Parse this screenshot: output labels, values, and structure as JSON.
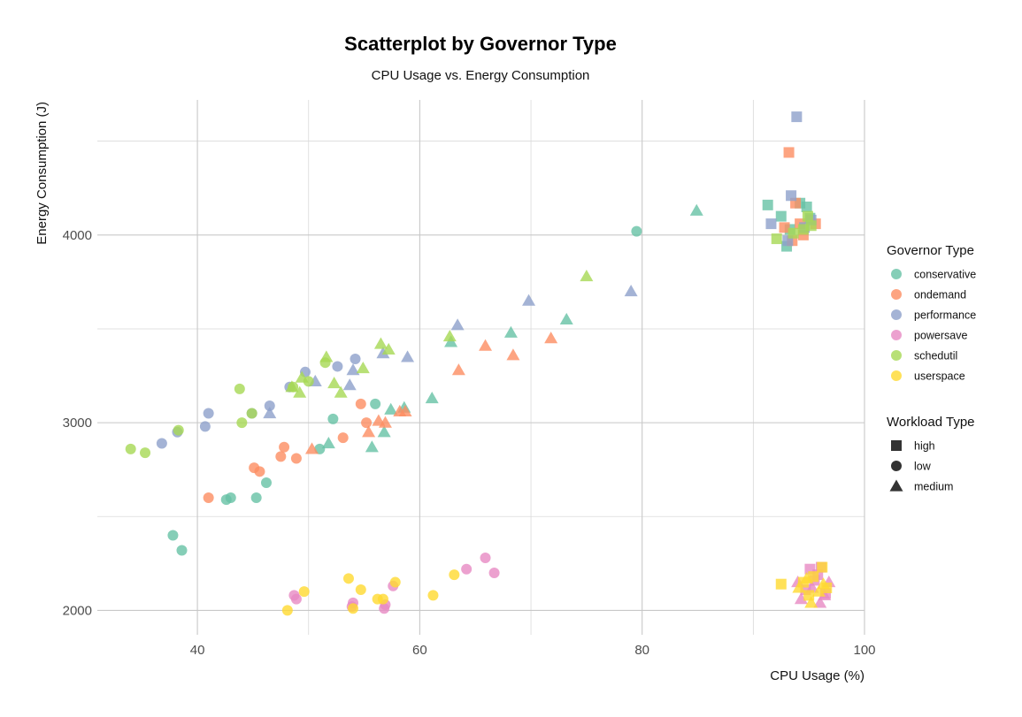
{
  "chart_data": {
    "type": "scatter",
    "title": "Scatterplot by Governor Type",
    "subtitle": "CPU Usage vs. Energy Consumption",
    "xlabel": "CPU Usage (%)",
    "ylabel": "Energy Consumption (J)",
    "xlim": [
      31,
      100
    ],
    "ylim": [
      1870,
      4720
    ],
    "x_ticks": [
      40,
      60,
      80,
      100
    ],
    "y_ticks": [
      2000,
      3000,
      4000
    ],
    "grid": true,
    "legend_placement": "right",
    "legends": [
      {
        "title": "Governor Type",
        "entries": [
          {
            "label": "conservative",
            "color": "#66c2a5"
          },
          {
            "label": "ondemand",
            "color": "#fc8d62"
          },
          {
            "label": "performance",
            "color": "#8da0cb"
          },
          {
            "label": "powersave",
            "color": "#e78ac3"
          },
          {
            "label": "schedutil",
            "color": "#a6d854"
          },
          {
            "label": "userspace",
            "color": "#ffd92f"
          }
        ]
      },
      {
        "title": "Workload Type",
        "entries": [
          {
            "label": "high",
            "shape": "square"
          },
          {
            "label": "low",
            "shape": "circle"
          },
          {
            "label": "medium",
            "shape": "triangle"
          }
        ]
      }
    ],
    "series": [
      {
        "governor": "conservative",
        "color": "#66c2a5",
        "points": [
          {
            "x": 37.8,
            "y": 2400,
            "w": "low"
          },
          {
            "x": 38.6,
            "y": 2320,
            "w": "low"
          },
          {
            "x": 42.6,
            "y": 2590,
            "w": "low"
          },
          {
            "x": 43.0,
            "y": 2600,
            "w": "low"
          },
          {
            "x": 45.3,
            "y": 2600,
            "w": "low"
          },
          {
            "x": 46.2,
            "y": 2680,
            "w": "low"
          },
          {
            "x": 51.0,
            "y": 2860,
            "w": "low"
          },
          {
            "x": 52.2,
            "y": 3020,
            "w": "low"
          },
          {
            "x": 56.0,
            "y": 3100,
            "w": "low"
          },
          {
            "x": 79.5,
            "y": 4020,
            "w": "low"
          },
          {
            "x": 51.8,
            "y": 2890,
            "w": "medium"
          },
          {
            "x": 55.7,
            "y": 2870,
            "w": "medium"
          },
          {
            "x": 56.8,
            "y": 2950,
            "w": "medium"
          },
          {
            "x": 57.4,
            "y": 3070,
            "w": "medium"
          },
          {
            "x": 58.6,
            "y": 3080,
            "w": "medium"
          },
          {
            "x": 61.1,
            "y": 3130,
            "w": "medium"
          },
          {
            "x": 62.8,
            "y": 3430,
            "w": "medium"
          },
          {
            "x": 68.2,
            "y": 3480,
            "w": "medium"
          },
          {
            "x": 73.2,
            "y": 3550,
            "w": "medium"
          },
          {
            "x": 84.9,
            "y": 4130,
            "w": "medium"
          },
          {
            "x": 91.3,
            "y": 4160,
            "w": "high"
          },
          {
            "x": 92.5,
            "y": 4100,
            "w": "high"
          },
          {
            "x": 93.0,
            "y": 3940,
            "w": "high"
          },
          {
            "x": 93.3,
            "y": 4030,
            "w": "high"
          },
          {
            "x": 94.2,
            "y": 4170,
            "w": "high"
          },
          {
            "x": 94.8,
            "y": 4150,
            "w": "high"
          },
          {
            "x": 95.1,
            "y": 4090,
            "w": "high"
          }
        ]
      },
      {
        "governor": "ondemand",
        "color": "#fc8d62",
        "points": [
          {
            "x": 41.0,
            "y": 2600,
            "w": "low"
          },
          {
            "x": 45.1,
            "y": 2760,
            "w": "low"
          },
          {
            "x": 45.6,
            "y": 2740,
            "w": "low"
          },
          {
            "x": 47.5,
            "y": 2820,
            "w": "low"
          },
          {
            "x": 47.8,
            "y": 2870,
            "w": "low"
          },
          {
            "x": 48.9,
            "y": 2810,
            "w": "low"
          },
          {
            "x": 53.1,
            "y": 2920,
            "w": "low"
          },
          {
            "x": 54.7,
            "y": 3100,
            "w": "low"
          },
          {
            "x": 55.2,
            "y": 3000,
            "w": "low"
          },
          {
            "x": 50.3,
            "y": 2860,
            "w": "medium"
          },
          {
            "x": 55.4,
            "y": 2950,
            "w": "medium"
          },
          {
            "x": 56.3,
            "y": 3010,
            "w": "medium"
          },
          {
            "x": 56.9,
            "y": 3000,
            "w": "medium"
          },
          {
            "x": 58.2,
            "y": 3060,
            "w": "medium"
          },
          {
            "x": 58.7,
            "y": 3060,
            "w": "medium"
          },
          {
            "x": 63.5,
            "y": 3280,
            "w": "medium"
          },
          {
            "x": 65.9,
            "y": 3410,
            "w": "medium"
          },
          {
            "x": 68.4,
            "y": 3360,
            "w": "medium"
          },
          {
            "x": 71.8,
            "y": 3450,
            "w": "medium"
          },
          {
            "x": 93.2,
            "y": 4440,
            "w": "high"
          },
          {
            "x": 93.8,
            "y": 4170,
            "w": "high"
          },
          {
            "x": 94.2,
            "y": 4060,
            "w": "high"
          },
          {
            "x": 94.5,
            "y": 4000,
            "w": "high"
          },
          {
            "x": 95.6,
            "y": 4060,
            "w": "high"
          },
          {
            "x": 93.5,
            "y": 3970,
            "w": "high"
          },
          {
            "x": 92.8,
            "y": 4040,
            "w": "high"
          }
        ]
      },
      {
        "governor": "performance",
        "color": "#8da0cb",
        "points": [
          {
            "x": 36.8,
            "y": 2890,
            "w": "low"
          },
          {
            "x": 38.2,
            "y": 2950,
            "w": "low"
          },
          {
            "x": 40.7,
            "y": 2980,
            "w": "low"
          },
          {
            "x": 41.0,
            "y": 3050,
            "w": "low"
          },
          {
            "x": 44.9,
            "y": 3050,
            "w": "low"
          },
          {
            "x": 46.5,
            "y": 3090,
            "w": "low"
          },
          {
            "x": 48.3,
            "y": 3190,
            "w": "low"
          },
          {
            "x": 49.7,
            "y": 3270,
            "w": "low"
          },
          {
            "x": 52.6,
            "y": 3300,
            "w": "low"
          },
          {
            "x": 54.2,
            "y": 3340,
            "w": "low"
          },
          {
            "x": 46.5,
            "y": 3050,
            "w": "medium"
          },
          {
            "x": 50.6,
            "y": 3220,
            "w": "medium"
          },
          {
            "x": 53.7,
            "y": 3200,
            "w": "medium"
          },
          {
            "x": 54.0,
            "y": 3280,
            "w": "medium"
          },
          {
            "x": 56.7,
            "y": 3370,
            "w": "medium"
          },
          {
            "x": 58.9,
            "y": 3350,
            "w": "medium"
          },
          {
            "x": 63.4,
            "y": 3520,
            "w": "medium"
          },
          {
            "x": 69.8,
            "y": 3650,
            "w": "medium"
          },
          {
            "x": 79.0,
            "y": 3700,
            "w": "medium"
          },
          {
            "x": 93.9,
            "y": 4630,
            "w": "high"
          },
          {
            "x": 93.4,
            "y": 4210,
            "w": "high"
          },
          {
            "x": 91.6,
            "y": 4060,
            "w": "high"
          },
          {
            "x": 93.1,
            "y": 3970,
            "w": "high"
          },
          {
            "x": 94.6,
            "y": 4040,
            "w": "high"
          },
          {
            "x": 95.2,
            "y": 4080,
            "w": "high"
          }
        ]
      },
      {
        "governor": "powersave",
        "color": "#e78ac3",
        "points": [
          {
            "x": 48.7,
            "y": 2080,
            "w": "low"
          },
          {
            "x": 48.9,
            "y": 2060,
            "w": "low"
          },
          {
            "x": 53.9,
            "y": 2020,
            "w": "low"
          },
          {
            "x": 54.0,
            "y": 2040,
            "w": "low"
          },
          {
            "x": 56.9,
            "y": 2030,
            "w": "low"
          },
          {
            "x": 56.8,
            "y": 2010,
            "w": "low"
          },
          {
            "x": 57.6,
            "y": 2130,
            "w": "low"
          },
          {
            "x": 64.2,
            "y": 2220,
            "w": "low"
          },
          {
            "x": 65.9,
            "y": 2280,
            "w": "low"
          },
          {
            "x": 66.7,
            "y": 2200,
            "w": "low"
          },
          {
            "x": 94.0,
            "y": 2150,
            "w": "medium"
          },
          {
            "x": 95.3,
            "y": 2120,
            "w": "medium"
          },
          {
            "x": 96.4,
            "y": 2080,
            "w": "medium"
          },
          {
            "x": 96.8,
            "y": 2150,
            "w": "medium"
          },
          {
            "x": 94.3,
            "y": 2060,
            "w": "medium"
          },
          {
            "x": 96.0,
            "y": 2040,
            "w": "medium"
          },
          {
            "x": 95.1,
            "y": 2220,
            "w": "high"
          },
          {
            "x": 95.8,
            "y": 2190,
            "w": "high"
          },
          {
            "x": 96.1,
            "y": 2230,
            "w": "high"
          },
          {
            "x": 94.7,
            "y": 2110,
            "w": "high"
          },
          {
            "x": 96.5,
            "y": 2090,
            "w": "high"
          },
          {
            "x": 95.5,
            "y": 2160,
            "w": "high"
          }
        ]
      },
      {
        "governor": "schedutil",
        "color": "#a6d854",
        "points": [
          {
            "x": 34.0,
            "y": 2860,
            "w": "low"
          },
          {
            "x": 35.3,
            "y": 2840,
            "w": "low"
          },
          {
            "x": 38.3,
            "y": 2960,
            "w": "low"
          },
          {
            "x": 43.8,
            "y": 3180,
            "w": "low"
          },
          {
            "x": 44.0,
            "y": 3000,
            "w": "low"
          },
          {
            "x": 44.9,
            "y": 3050,
            "w": "low"
          },
          {
            "x": 48.6,
            "y": 3190,
            "w": "low"
          },
          {
            "x": 50.0,
            "y": 3220,
            "w": "low"
          },
          {
            "x": 51.5,
            "y": 3320,
            "w": "low"
          },
          {
            "x": 48.5,
            "y": 3190,
            "w": "medium"
          },
          {
            "x": 49.2,
            "y": 3160,
            "w": "medium"
          },
          {
            "x": 49.4,
            "y": 3240,
            "w": "medium"
          },
          {
            "x": 51.6,
            "y": 3350,
            "w": "medium"
          },
          {
            "x": 52.3,
            "y": 3210,
            "w": "medium"
          },
          {
            "x": 52.9,
            "y": 3160,
            "w": "medium"
          },
          {
            "x": 54.9,
            "y": 3290,
            "w": "medium"
          },
          {
            "x": 56.5,
            "y": 3420,
            "w": "medium"
          },
          {
            "x": 57.2,
            "y": 3390,
            "w": "medium"
          },
          {
            "x": 62.7,
            "y": 3460,
            "w": "medium"
          },
          {
            "x": 75.0,
            "y": 3780,
            "w": "medium"
          },
          {
            "x": 92.1,
            "y": 3980,
            "w": "high"
          },
          {
            "x": 93.6,
            "y": 4010,
            "w": "high"
          },
          {
            "x": 94.5,
            "y": 4030,
            "w": "high"
          },
          {
            "x": 94.9,
            "y": 4100,
            "w": "high"
          },
          {
            "x": 95.2,
            "y": 4050,
            "w": "high"
          }
        ]
      },
      {
        "governor": "userspace",
        "color": "#ffd92f",
        "points": [
          {
            "x": 48.1,
            "y": 2000,
            "w": "low"
          },
          {
            "x": 49.6,
            "y": 2100,
            "w": "low"
          },
          {
            "x": 53.6,
            "y": 2170,
            "w": "low"
          },
          {
            "x": 54.0,
            "y": 2010,
            "w": "low"
          },
          {
            "x": 54.7,
            "y": 2110,
            "w": "low"
          },
          {
            "x": 56.2,
            "y": 2060,
            "w": "low"
          },
          {
            "x": 56.7,
            "y": 2060,
            "w": "low"
          },
          {
            "x": 57.8,
            "y": 2150,
            "w": "low"
          },
          {
            "x": 61.2,
            "y": 2080,
            "w": "low"
          },
          {
            "x": 63.1,
            "y": 2190,
            "w": "low"
          },
          {
            "x": 92.5,
            "y": 2140,
            "w": "high"
          },
          {
            "x": 94.5,
            "y": 2150,
            "w": "high"
          },
          {
            "x": 95.4,
            "y": 2180,
            "w": "high"
          },
          {
            "x": 96.2,
            "y": 2230,
            "w": "high"
          },
          {
            "x": 95.0,
            "y": 2080,
            "w": "high"
          },
          {
            "x": 96.6,
            "y": 2120,
            "w": "high"
          },
          {
            "x": 94.1,
            "y": 2120,
            "w": "medium"
          },
          {
            "x": 95.2,
            "y": 2040,
            "w": "medium"
          },
          {
            "x": 95.9,
            "y": 2100,
            "w": "medium"
          },
          {
            "x": 96.3,
            "y": 2140,
            "w": "medium"
          },
          {
            "x": 94.8,
            "y": 2170,
            "w": "medium"
          }
        ]
      }
    ]
  }
}
